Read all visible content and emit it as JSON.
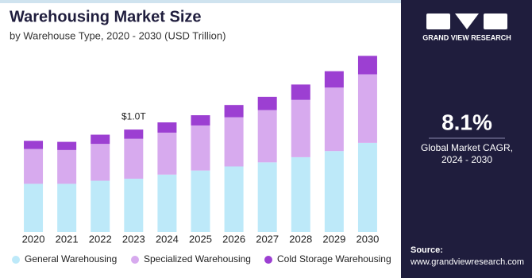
{
  "chart_data": {
    "type": "stacked_bar",
    "title": "Warehousing Market Size",
    "subtitle": "by Warehouse Type, 2020 - 2030 (USD Trillion)",
    "categories": [
      "2020",
      "2021",
      "2022",
      "2023",
      "2024",
      "2025",
      "2026",
      "2027",
      "2028",
      "2029",
      "2030"
    ],
    "series": [
      {
        "name": "General Warehousing",
        "color": "#bde9f9",
        "values": [
          0.47,
          0.47,
          0.5,
          0.52,
          0.56,
          0.6,
          0.64,
          0.68,
          0.73,
          0.79,
          0.87
        ]
      },
      {
        "name": "Specialized Warehousing",
        "color": "#d7aaee",
        "values": [
          0.34,
          0.33,
          0.36,
          0.39,
          0.41,
          0.44,
          0.48,
          0.51,
          0.56,
          0.62,
          0.67
        ]
      },
      {
        "name": "Cold Storage Warehousing",
        "color": "#9c3fd2",
        "values": [
          0.08,
          0.08,
          0.09,
          0.09,
          0.1,
          0.1,
          0.12,
          0.13,
          0.15,
          0.16,
          0.18
        ]
      }
    ],
    "annotations": [
      {
        "label": "$1.0T",
        "value": 1.0,
        "category": "2023"
      }
    ],
    "ylim": [
      0,
      1.8
    ]
  },
  "sidebar": {
    "brand": "GRAND VIEW RESEARCH",
    "stat": "8.1%",
    "stat_caption": [
      "Global Market CAGR,",
      "2024 - 2030"
    ],
    "source_label": "Source:",
    "source_url": "www.grandviewresearch.com"
  }
}
